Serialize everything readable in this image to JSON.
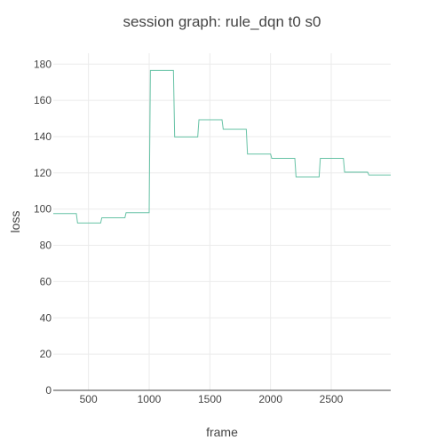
{
  "chart_data": {
    "type": "line",
    "title": "session graph: rule_dqn t0 s0",
    "xlabel": "frame",
    "ylabel": "loss",
    "xlim": [
      210,
      2990
    ],
    "ylim": [
      0,
      186
    ],
    "x_ticks": [
      500,
      1000,
      1500,
      2000,
      2500
    ],
    "y_ticks": [
      0,
      20,
      40,
      60,
      80,
      100,
      120,
      140,
      160,
      180
    ],
    "grid": true,
    "legend": "none",
    "colors": {
      "series": "#66c2a5"
    },
    "series": [
      {
        "x": [
          210,
          400,
          410,
          600,
          610,
          800,
          810,
          1000,
          1010,
          1200,
          1210,
          1400,
          1410,
          1600,
          1610,
          1800,
          1810,
          2000,
          2010,
          2200,
          2210,
          2400,
          2410,
          2600,
          2610,
          2800,
          2810,
          2990
        ],
        "y": [
          97.5,
          97.5,
          92.3,
          92.3,
          95.2,
          95.2,
          98.0,
          98.0,
          176.5,
          176.5,
          139.8,
          139.8,
          149.3,
          149.3,
          144.1,
          144.1,
          130.4,
          130.4,
          128.0,
          128.0,
          117.7,
          117.7,
          128.0,
          128.0,
          120.4,
          120.4,
          118.8,
          118.8
        ]
      }
    ]
  }
}
